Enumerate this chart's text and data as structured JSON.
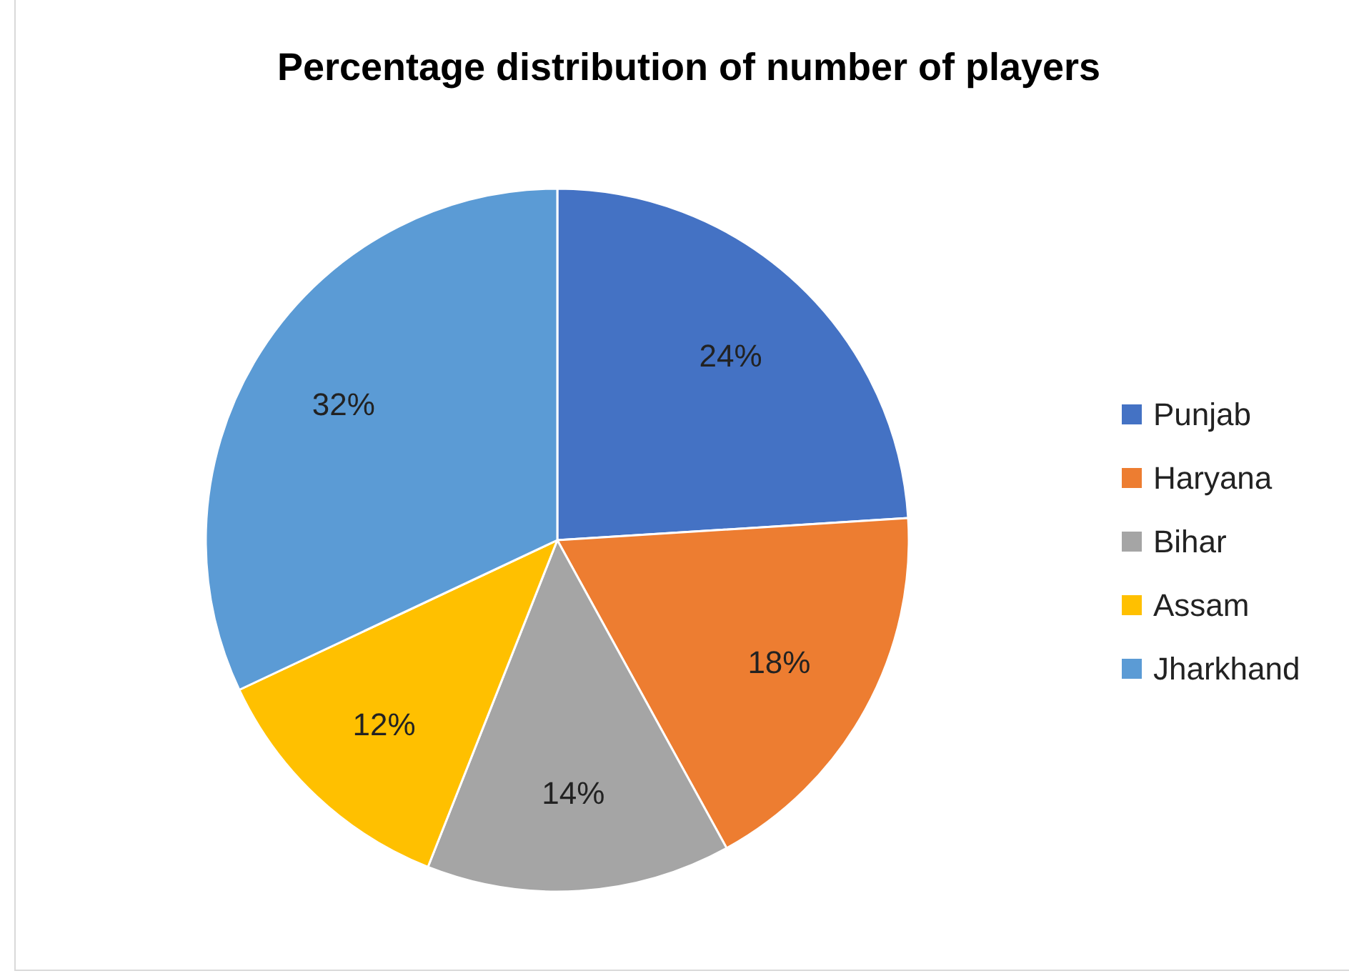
{
  "chart_data": {
    "type": "pie",
    "title": "Percentage distribution of number of players",
    "categories": [
      "Punjab",
      "Haryana",
      "Bihar",
      "Assam",
      "Jharkhand"
    ],
    "values": [
      24,
      18,
      14,
      12,
      32
    ],
    "value_labels": [
      "24%",
      "18%",
      "14%",
      "12%",
      "32%"
    ],
    "colors": [
      "#4472c4",
      "#ed7d31",
      "#a5a5a5",
      "#ffc000",
      "#5b9bd5"
    ],
    "legend": "right"
  }
}
